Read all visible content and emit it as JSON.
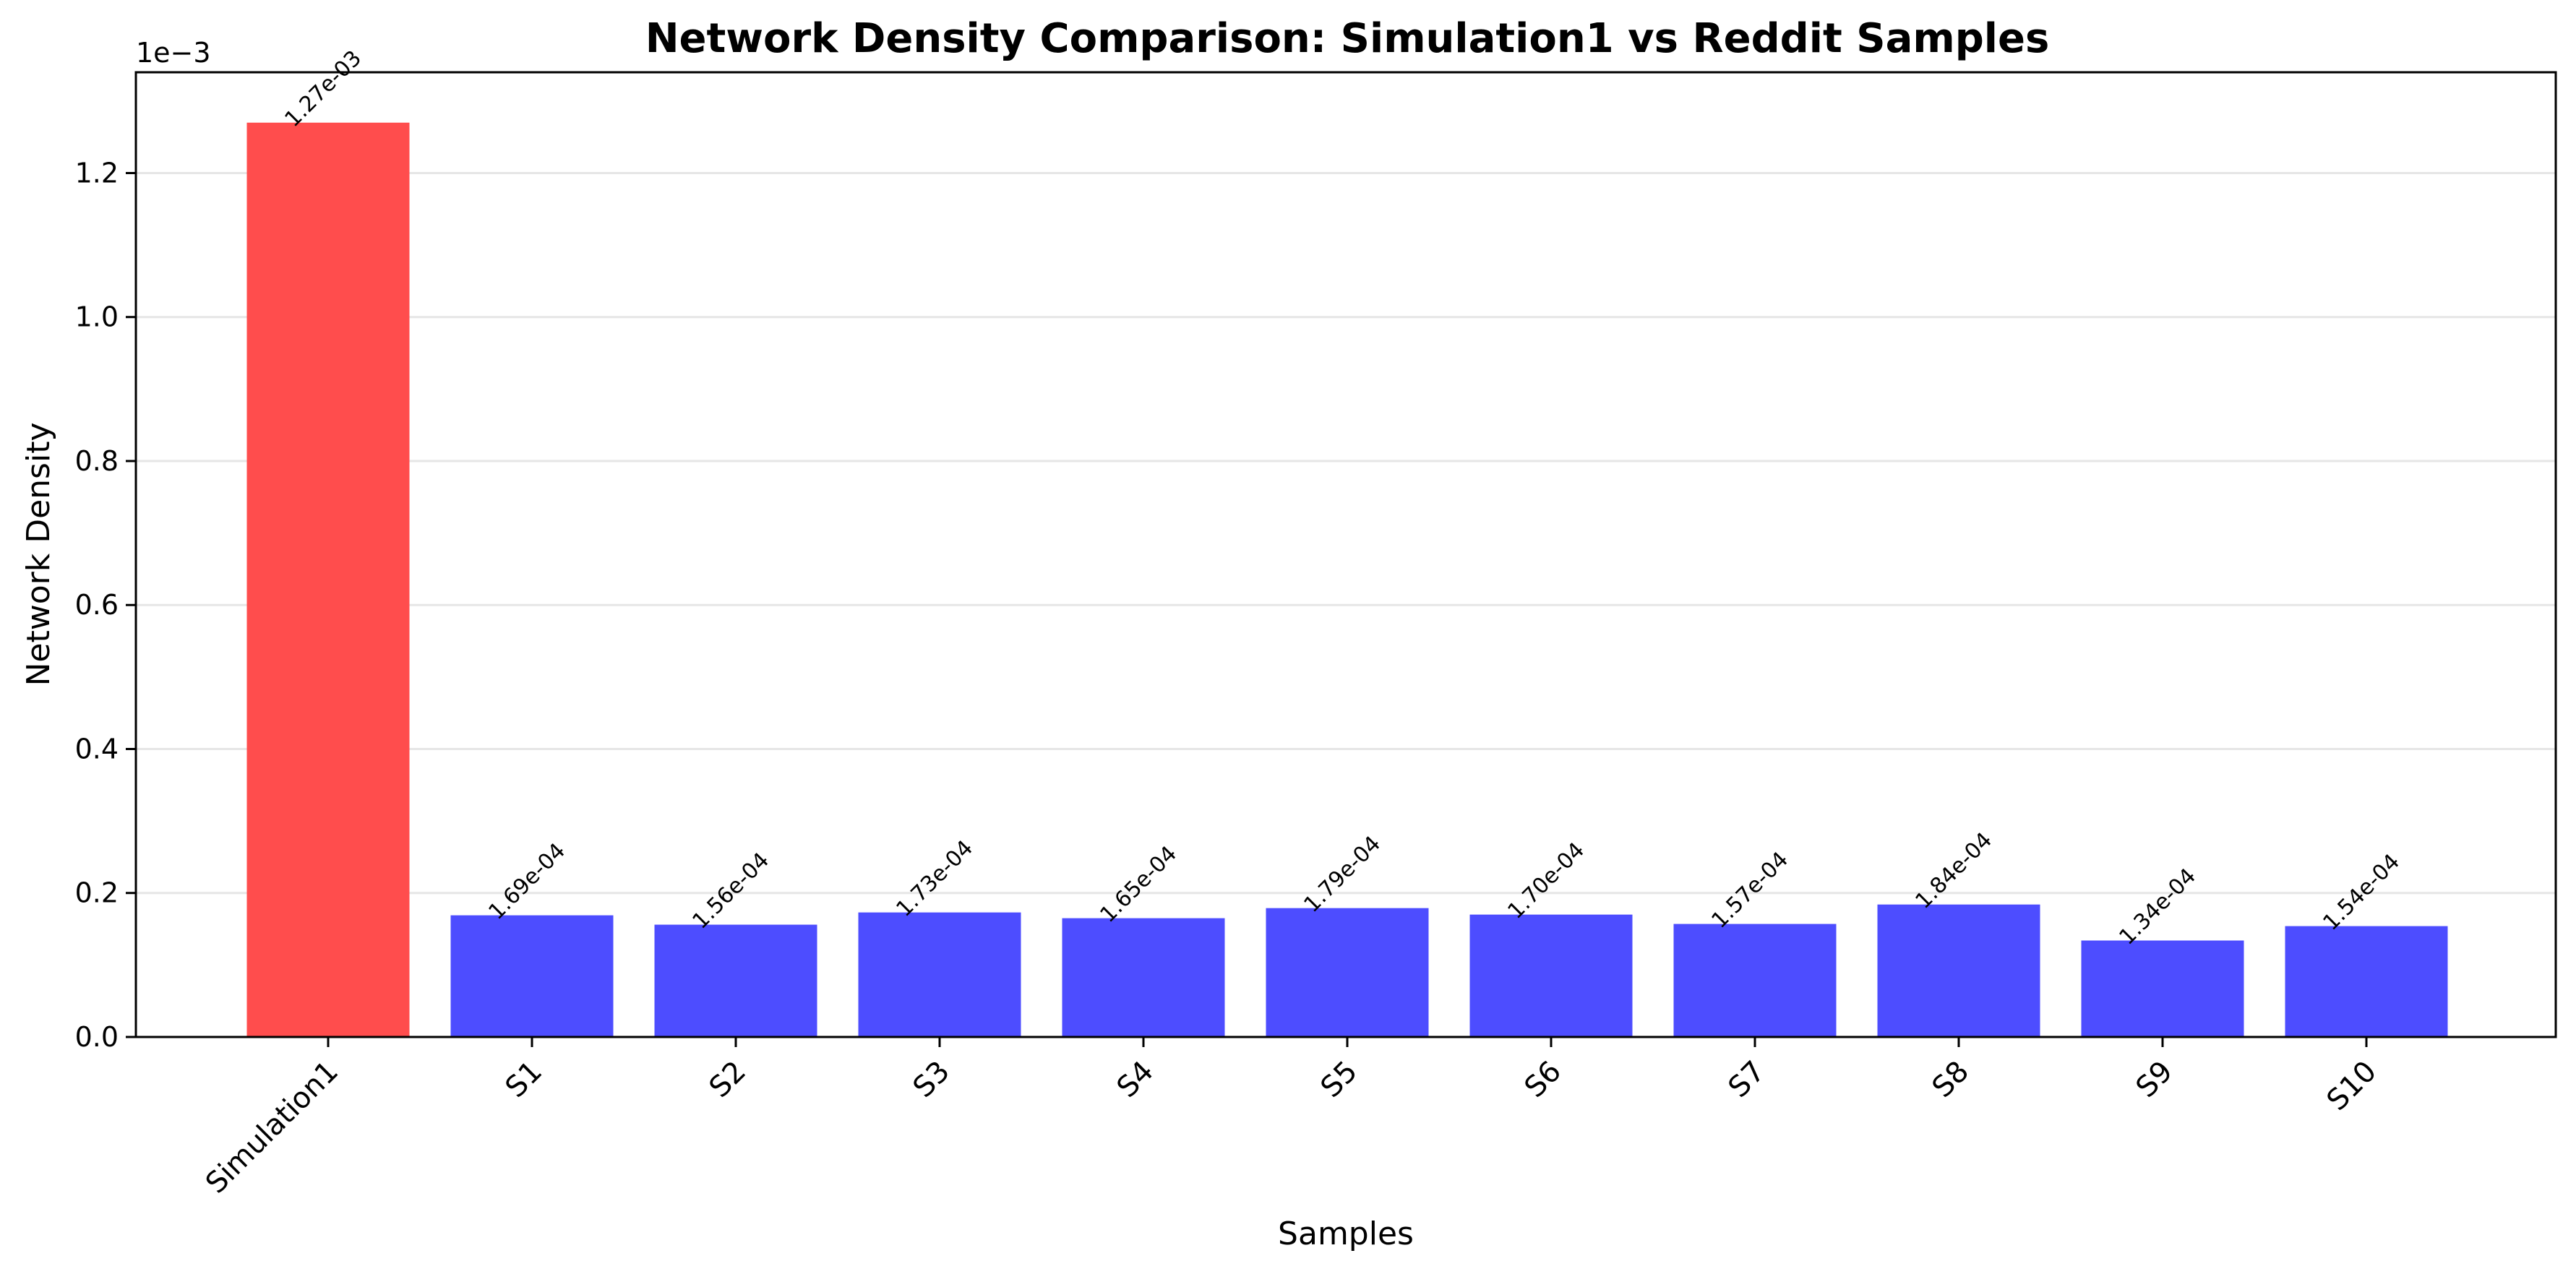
{
  "chart_data": {
    "type": "bar",
    "title": "Network Density Comparison: Simulation1 vs Reddit Samples",
    "xlabel": "Samples",
    "ylabel": "Network Density",
    "y_scale_label": "1e−3",
    "y_scale_factor": 0.001,
    "ylim": [
      0,
      0.00134
    ],
    "yticks": [
      0,
      0.0002,
      0.0004,
      0.0006,
      0.0008,
      0.001,
      0.0012
    ],
    "ytick_labels": [
      "0.0",
      "0.2",
      "0.4",
      "0.6",
      "0.8",
      "1.0",
      "1.2"
    ],
    "grid": "y",
    "categories": [
      "Simulation1",
      "S1",
      "S2",
      "S3",
      "S4",
      "S5",
      "S6",
      "S7",
      "S8",
      "S9",
      "S10"
    ],
    "values": [
      0.00127,
      0.000169,
      0.000156,
      0.000173,
      0.000165,
      0.000179,
      0.00017,
      0.000157,
      0.000184,
      0.000134,
      0.000154
    ],
    "value_labels": [
      "1.27e-03",
      "1.69e-04",
      "1.56e-04",
      "1.73e-04",
      "1.65e-04",
      "1.79e-04",
      "1.70e-04",
      "1.57e-04",
      "1.84e-04",
      "1.34e-04",
      "1.54e-04"
    ],
    "bar_colors": [
      "#ff4d4d",
      "#4d4dff",
      "#4d4dff",
      "#4d4dff",
      "#4d4dff",
      "#4d4dff",
      "#4d4dff",
      "#4d4dff",
      "#4d4dff",
      "#4d4dff",
      "#4d4dff"
    ]
  }
}
